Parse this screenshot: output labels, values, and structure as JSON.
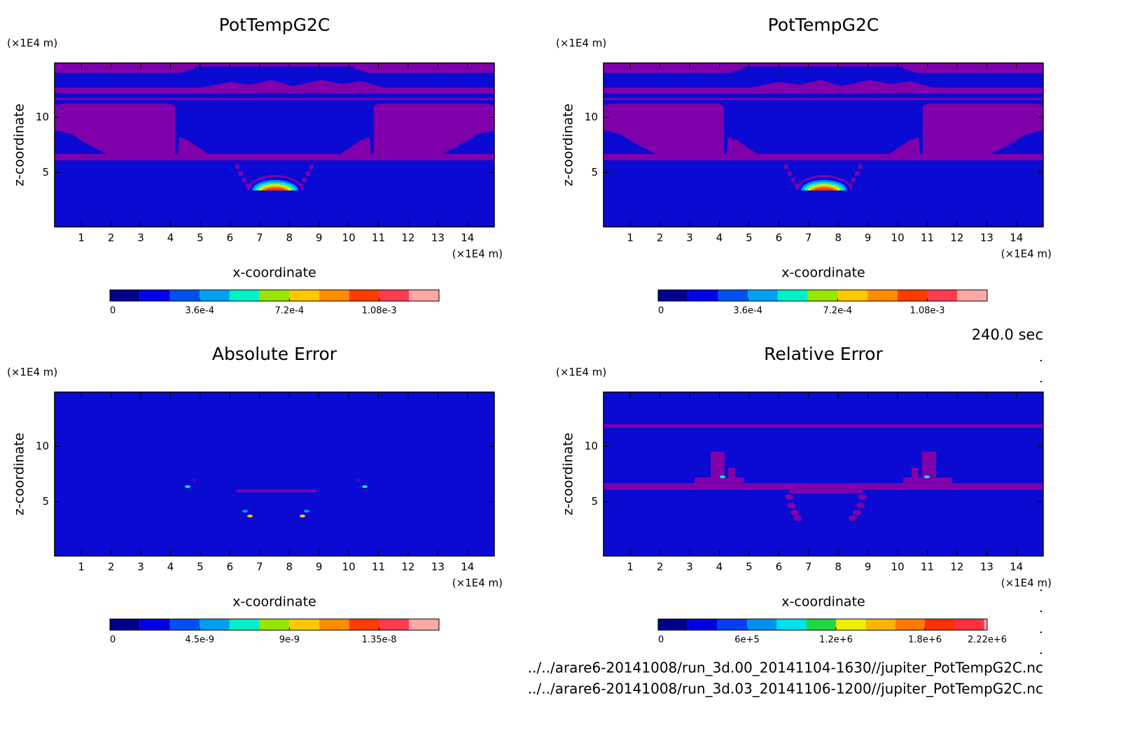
{
  "chart_data": [
    {
      "type": "contour",
      "title": "PotTempG2C",
      "x_label": "x-coordinate",
      "y_label": "z-coordinate",
      "x_unit": "(×1E4 m)",
      "y_unit": "(×1E4 m)",
      "xlim": [
        0.1,
        14.9
      ],
      "xticks": [
        1,
        2,
        3,
        4,
        5,
        6,
        7,
        8,
        9,
        10,
        11,
        12,
        13,
        14
      ],
      "ylim": [
        0.1,
        14.9
      ],
      "yticks": [
        5,
        10
      ],
      "colorbar": {
        "levels": [
          0,
          0.00012,
          0.00024,
          0.00036,
          0.00048,
          0.0006,
          0.00072,
          0.00084,
          0.00096,
          0.00108,
          0.0012,
          0.00132
        ],
        "colors": [
          "#00008c",
          "#0000e6",
          "#0050f0",
          "#00a0f0",
          "#00f0c8",
          "#96e600",
          "#ffc800",
          "#ff8c00",
          "#ff3c00",
          "#ff3c50",
          "#ffa8a8"
        ],
        "ticks": [
          0,
          {
            "value": 0.00036,
            "label": "3.6e-4"
          },
          {
            "value": 0.00072,
            "label": "7.2e-4"
          },
          {
            "value": 0.00108,
            "label": "1.08e-3"
          }
        ]
      }
    },
    {
      "type": "contour",
      "title": "PotTempG2C",
      "x_label": "x-coordinate",
      "y_label": "z-coordinate",
      "x_unit": "(×1E4 m)",
      "y_unit": "(×1E4 m)",
      "xlim": [
        0.1,
        14.9
      ],
      "xticks": [
        1,
        2,
        3,
        4,
        5,
        6,
        7,
        8,
        9,
        10,
        11,
        12,
        13,
        14
      ],
      "ylim": [
        0.1,
        14.9
      ],
      "yticks": [
        5,
        10
      ],
      "colorbar": {
        "levels": [
          0,
          0.00012,
          0.00024,
          0.00036,
          0.00048,
          0.0006,
          0.00072,
          0.00084,
          0.00096,
          0.00108,
          0.0012,
          0.00132
        ],
        "colors": [
          "#00008c",
          "#0000e6",
          "#0050f0",
          "#00a0f0",
          "#00f0c8",
          "#96e600",
          "#ffc800",
          "#ff8c00",
          "#ff3c00",
          "#ff3c50",
          "#ffa8a8"
        ],
        "ticks": [
          0,
          {
            "value": 0.00036,
            "label": "3.6e-4"
          },
          {
            "value": 0.00072,
            "label": "7.2e-4"
          },
          {
            "value": 0.00108,
            "label": "1.08e-3"
          }
        ]
      }
    },
    {
      "type": "contour",
      "title": "Absolute Error",
      "x_label": "x-coordinate",
      "y_label": "z-coordinate",
      "x_unit": "(×1E4 m)",
      "y_unit": "(×1E4 m)",
      "xlim": [
        0.1,
        14.9
      ],
      "xticks": [
        1,
        2,
        3,
        4,
        5,
        6,
        7,
        8,
        9,
        10,
        11,
        12,
        13,
        14
      ],
      "ylim": [
        0.1,
        14.9
      ],
      "yticks": [
        5,
        10
      ],
      "colorbar": {
        "levels": [
          0,
          1.5e-09,
          3e-09,
          4.5e-09,
          6e-09,
          7.5e-09,
          9e-09,
          1.05e-08,
          1.2e-08,
          1.35e-08,
          1.5e-08,
          1.65e-08
        ],
        "colors": [
          "#00008c",
          "#0000e6",
          "#0050f0",
          "#00a0f0",
          "#00f0c8",
          "#96e600",
          "#ffc800",
          "#ff8c00",
          "#ff3c00",
          "#ff3c50",
          "#ffa8a8"
        ],
        "ticks": [
          0,
          {
            "value": 4.5e-09,
            "label": "4.5e-9"
          },
          {
            "value": 9e-09,
            "label": "9e-9"
          },
          {
            "value": 1.35e-08,
            "label": "1.35e-8"
          }
        ]
      }
    },
    {
      "type": "contour",
      "title": "Relative Error",
      "x_label": "x-coordinate",
      "y_label": "z-coordinate",
      "x_unit": "(×1E4 m)",
      "y_unit": "(×1E4 m)",
      "xlim": [
        0.1,
        14.9
      ],
      "xticks": [
        1,
        2,
        3,
        4,
        5,
        6,
        7,
        8,
        9,
        10,
        11,
        12,
        13,
        14
      ],
      "ylim": [
        0.1,
        14.9
      ],
      "yticks": [
        5,
        10
      ],
      "colorbar": {
        "levels": [
          0,
          200000,
          400000,
          600000,
          800000,
          1000000,
          1200000,
          1400000,
          1600000,
          1800000,
          2000000,
          2200000,
          2220000
        ],
        "colors": [
          "#00008c",
          "#0000e6",
          "#0040f0",
          "#0090f0",
          "#00e0f0",
          "#20d840",
          "#f0f000",
          "#ffb400",
          "#ff7800",
          "#ff3000",
          "#ff3040",
          "#ffa8a8"
        ],
        "ticks": [
          0,
          {
            "value": 600000,
            "label": "6e+5"
          },
          {
            "value": 1200000,
            "label": "1.2e+6"
          },
          {
            "value": 1800000,
            "label": "1.8e+6"
          },
          {
            "value": 2220000,
            "label": "2.22e+6"
          }
        ]
      }
    }
  ],
  "time": "240.0 sec",
  "files": [
    "../../arare6-20141008/run_3d.00_20141104-1630//jupiter_PotTempG2C.nc",
    "../../arare6-20141008/run_3d.03_20141106-1200//jupiter_PotTempG2C.nc"
  ]
}
